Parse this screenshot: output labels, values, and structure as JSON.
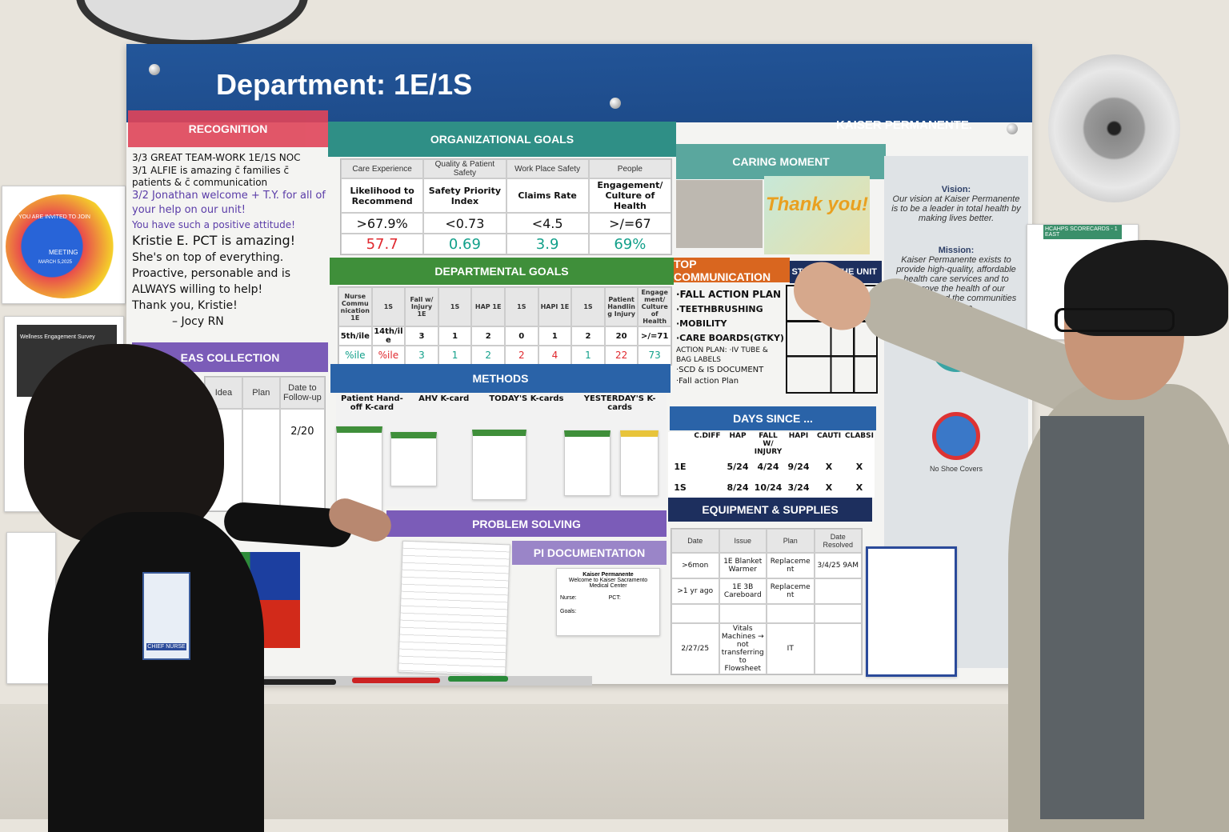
{
  "board": {
    "title": "Department: 1E/1S",
    "brand": "KAISER PERMANENTE."
  },
  "recognition": {
    "header": "RECOGNITION",
    "lines": [
      "3/3 GREAT TEAM-WORK 1E/1S NOC",
      "3/1 ALFIE is amazing c̄ families c̄ patients & c̄ communication",
      "3/2 Jonathan welcome + T.Y. for all of your help on our unit!",
      "You have such a positive attitude!",
      "Kristie E. PCT is amazing!",
      "She's on top of everything.",
      "Proactive, personable and is ALWAYS willing to help!",
      "Thank you, Kristie!",
      "– Jocy RN"
    ]
  },
  "ideas": {
    "header": "EAS COLLECTION",
    "columns": [
      "Idea",
      "Plan",
      "Date to Follow-up"
    ],
    "date": "2/20"
  },
  "org_goals": {
    "header": "ORGANIZATIONAL GOALS",
    "categories": [
      "Care Experience",
      "Quality & Patient Safety",
      "Work Place Safety",
      "People"
    ],
    "metrics": [
      "Likelihood to Recommend",
      "Safety Priority Index",
      "Claims Rate",
      "Engagement/ Culture of Health"
    ],
    "targets": [
      ">67.9%",
      "<0.73",
      "<4.5",
      ">/=67"
    ],
    "actuals": [
      "57.7",
      "0.69",
      "3.9",
      "69%"
    ]
  },
  "dept_goals": {
    "header": "DEPARTMENTAL GOALS",
    "columns": [
      "Nurse Communication 1E",
      "1S",
      "Fall w/ Injury 1E",
      "1S",
      "HAP 1E",
      "1S",
      "HAPI 1E",
      "1S",
      "Patient Handling Injury",
      "Engagement/ Culture of Health"
    ],
    "targets": [
      "5th/ile",
      "14th/ile",
      "3",
      "1",
      "2",
      "0",
      "1",
      "2",
      "20",
      ">/=71"
    ],
    "actuals": [
      "%ile",
      "%ile",
      "3",
      "1",
      "2",
      "2",
      "4",
      "1",
      "22",
      "73"
    ]
  },
  "methods": {
    "header": "METHODS",
    "columns": [
      "Patient Hand-off K-card",
      "AHV K-card",
      "TODAY'S K-cards",
      "YESTERDAY'S K-cards"
    ]
  },
  "problem_solving": {
    "header": "PROBLEM SOLVING"
  },
  "pi_documentation": {
    "header": "PI DOCUMENTATION",
    "doc_title": "Kaiser Permanente",
    "doc_text": "Welcome to Kaiser Sacramento Medical Center",
    "labels": [
      "Nurse:",
      "PCT:",
      "Goals:"
    ]
  },
  "caring_moment": {
    "header": "CARING MOMENT",
    "card": "Thank you!"
  },
  "top_communication": {
    "header": "TOP COMMUNICATION",
    "items": [
      "·FALL ACTION PLAN",
      "·TEETHBRUSHING",
      "·MOBILITY",
      "·CARE BOARDS(GTKY)",
      "ACTION PLAN: ·IV TUBE & BAG LABELS",
      "·SCD & IS DOCUMENT",
      "·Fall action Plan"
    ]
  },
  "state_of_unit": {
    "header": "STATE OF THE UNIT",
    "cols": [
      "1E",
      "1S"
    ]
  },
  "days_since": {
    "header": "DAYS SINCE ...",
    "columns": [
      "",
      "C.DIFF",
      "HAP",
      "FALL W/ INJURY",
      "HAPI",
      "CAUTI",
      "CLABSI"
    ],
    "rows": [
      [
        "1E",
        "",
        "5/24",
        "4/24",
        "9/24",
        "X",
        "X"
      ],
      [
        "1S",
        "",
        "8/24",
        "10/24",
        "3/24",
        "X",
        "X"
      ]
    ]
  },
  "equipment": {
    "header": "EQUIPMENT & SUPPLIES",
    "columns": [
      "Date",
      "Issue",
      "Plan",
      "Date Resolved"
    ],
    "rows": [
      [
        ">6mon",
        "1E Blanket Warmer",
        "Replacement",
        "3/4/25 9AM"
      ],
      [
        ">1 yr ago",
        "1E 3B Careboard",
        "Replacement",
        ""
      ],
      [
        "",
        "",
        "",
        ""
      ],
      [
        "2/27/25",
        "Vitals Machines → not transferring to Flowsheet",
        "IT",
        ""
      ]
    ]
  },
  "vision": {
    "label": "Vision:",
    "text": "Our vision at Kaiser Permanente is to be a leader in total health by making lives better."
  },
  "mission": {
    "label": "Mission:",
    "text": "Kaiser Permanente exists to provide high-quality, affordable health care services and to improve the health of our members and the communities we serve."
  },
  "side": {
    "no_shoe": "No Shoe Covers",
    "scorecard": "HCAHPS SCORECARDS - 1 EAST",
    "invite": "YOU ARE INVITED TO JOIN",
    "meeting": "MEETING",
    "date": "MARCH 5,2025",
    "survey": "Wellness Engagement Survey",
    "badge": "CHIEF NURSE"
  },
  "colors": {
    "header_blue": "#1f4e8c",
    "recognition": "#e0455a",
    "org_goals": "#2f8f86",
    "dept_goals": "#3f8f3a",
    "methods": "#2a63a8",
    "purple": "#7b5cb8",
    "orange": "#d9661f",
    "navy": "#1d2f5e"
  }
}
